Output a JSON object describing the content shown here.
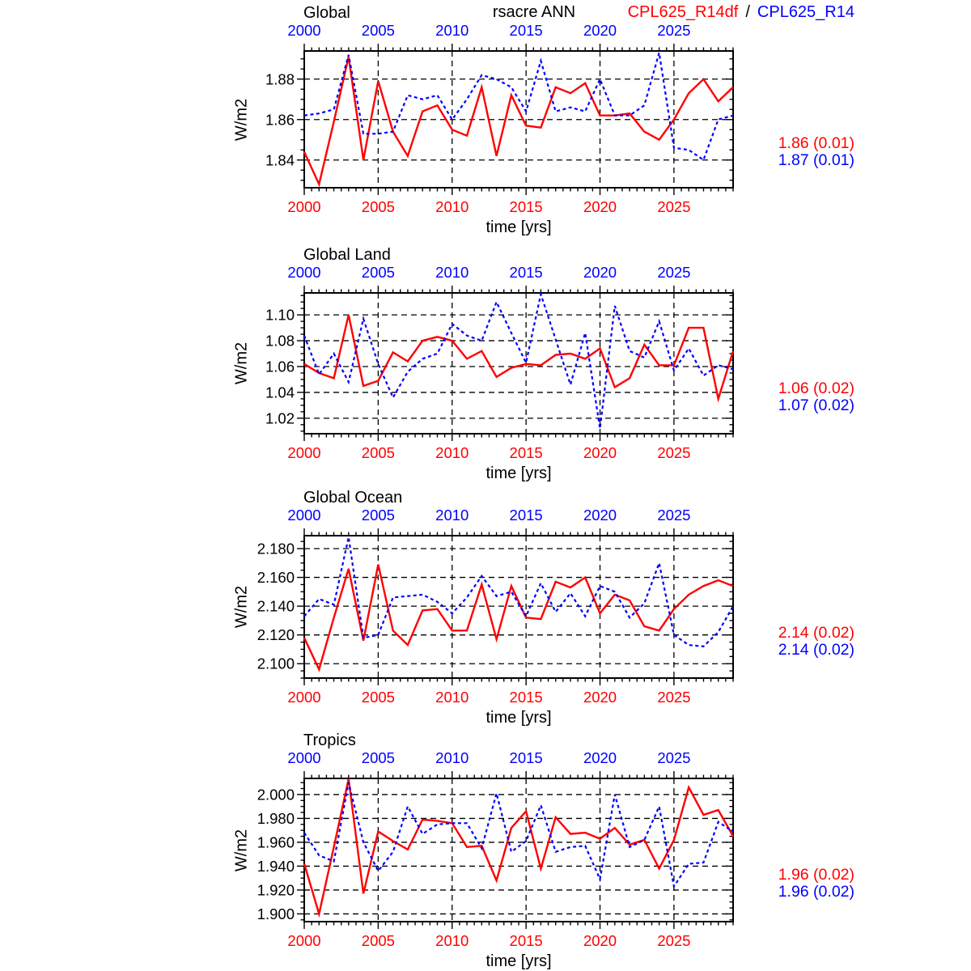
{
  "header": {
    "center_label": "rsacre ANN",
    "legend": {
      "series1": "CPL625_R14df",
      "separator": "/",
      "series2": "CPL625_R14"
    }
  },
  "labels": {
    "xlabel": "time [yrs]",
    "ylabel": "W/m2"
  },
  "colors": {
    "series1": "#ff0000",
    "series2": "#0000ff",
    "grid": "#000000",
    "frame": "#000000"
  },
  "x_years": [
    2000,
    2001,
    2002,
    2003,
    2004,
    2005,
    2006,
    2007,
    2008,
    2009,
    2010,
    2011,
    2012,
    2013,
    2014,
    2015,
    2016,
    2017,
    2018,
    2019,
    2020,
    2021,
    2022,
    2023,
    2024,
    2025,
    2026,
    2027,
    2028,
    2029
  ],
  "x_ticks": [
    2000,
    2005,
    2010,
    2015,
    2020,
    2025
  ],
  "chart_data": [
    {
      "type": "line",
      "title": "Global",
      "xlabel": "time [yrs]",
      "ylabel": "W/m2",
      "xlim": [
        2000,
        2029
      ],
      "ylim": [
        1.8263,
        1.8939
      ],
      "yticks": [
        1.84,
        1.86,
        1.88
      ],
      "ytick_labels": [
        "1.84",
        "1.86",
        "1.88"
      ],
      "stats": {
        "series1": "1.86 (0.01)",
        "series2": "1.87 (0.01)"
      },
      "series": [
        {
          "name": "CPL625_R14df",
          "style": "red-solid",
          "values": [
            1.844,
            1.828,
            1.859,
            1.891,
            1.84,
            1.879,
            1.854,
            1.842,
            1.864,
            1.867,
            1.855,
            1.852,
            1.876,
            1.842,
            1.872,
            1.857,
            1.856,
            1.876,
            1.873,
            1.878,
            1.862,
            1.862,
            1.863,
            1.854,
            1.85,
            1.86,
            1.873,
            1.88,
            1.869,
            1.876
          ]
        },
        {
          "name": "CPL625_R14",
          "style": "blue-dashed",
          "values": [
            1.862,
            1.863,
            1.865,
            1.892,
            1.853,
            1.853,
            1.854,
            1.872,
            1.87,
            1.872,
            1.86,
            1.87,
            1.882,
            1.88,
            1.876,
            1.864,
            1.889,
            1.864,
            1.866,
            1.864,
            1.88,
            1.862,
            1.862,
            1.867,
            1.893,
            1.846,
            1.845,
            1.84,
            1.86,
            1.862
          ]
        }
      ]
    },
    {
      "type": "line",
      "title": "Global Land",
      "xlabel": "time [yrs]",
      "ylabel": "W/m2",
      "xlim": [
        2000,
        2029
      ],
      "ylim": [
        1.008,
        1.117
      ],
      "yticks": [
        1.02,
        1.04,
        1.06,
        1.08,
        1.1
      ],
      "ytick_labels": [
        "1.02",
        "1.04",
        "1.06",
        "1.08",
        "1.10"
      ],
      "stats": {
        "series1": "1.06 (0.02)",
        "series2": "1.07 (0.02)"
      },
      "series": [
        {
          "name": "CPL625_R14df",
          "style": "red-solid",
          "values": [
            1.062,
            1.055,
            1.051,
            1.1,
            1.045,
            1.049,
            1.071,
            1.064,
            1.08,
            1.083,
            1.08,
            1.066,
            1.072,
            1.052,
            1.059,
            1.062,
            1.061,
            1.069,
            1.07,
            1.066,
            1.074,
            1.044,
            1.051,
            1.077,
            1.061,
            1.061,
            1.09,
            1.09,
            1.035,
            1.072
          ]
        },
        {
          "name": "CPL625_R14",
          "style": "blue-dashed",
          "values": [
            1.084,
            1.054,
            1.07,
            1.048,
            1.097,
            1.062,
            1.036,
            1.056,
            1.066,
            1.07,
            1.093,
            1.084,
            1.08,
            1.11,
            1.086,
            1.063,
            1.116,
            1.081,
            1.046,
            1.086,
            1.012,
            1.107,
            1.072,
            1.067,
            1.095,
            1.057,
            1.074,
            1.053,
            1.061,
            1.058
          ]
        }
      ]
    },
    {
      "type": "line",
      "title": "Global Ocean",
      "xlabel": "time [yrs]",
      "ylabel": "W/m2",
      "xlim": [
        2000,
        2029
      ],
      "ylim": [
        2.09,
        2.189
      ],
      "yticks": [
        2.1,
        2.12,
        2.14,
        2.16,
        2.18
      ],
      "ytick_labels": [
        "2.100",
        "2.120",
        "2.140",
        "2.160",
        "2.180"
      ],
      "stats": {
        "series1": "2.14 (0.02)",
        "series2": "2.14 (0.02)"
      },
      "series": [
        {
          "name": "CPL625_R14df",
          "style": "red-solid",
          "values": [
            2.118,
            2.096,
            2.132,
            2.166,
            2.116,
            2.169,
            2.123,
            2.113,
            2.137,
            2.138,
            2.123,
            2.123,
            2.155,
            2.117,
            2.154,
            2.132,
            2.131,
            2.157,
            2.153,
            2.16,
            2.135,
            2.148,
            2.144,
            2.126,
            2.123,
            2.138,
            2.148,
            2.154,
            2.158,
            2.154
          ]
        },
        {
          "name": "CPL625_R14",
          "style": "blue-dashed",
          "values": [
            2.133,
            2.145,
            2.141,
            2.188,
            2.118,
            2.12,
            2.146,
            2.147,
            2.148,
            2.143,
            2.135,
            2.146,
            2.161,
            2.147,
            2.15,
            2.133,
            2.156,
            2.136,
            2.149,
            2.133,
            2.154,
            2.15,
            2.132,
            2.142,
            2.17,
            2.12,
            2.113,
            2.112,
            2.122,
            2.14
          ]
        }
      ]
    },
    {
      "type": "line",
      "title": "Tropics",
      "xlabel": "time [yrs]",
      "ylabel": "W/m2",
      "xlim": [
        2000,
        2029
      ],
      "ylim": [
        1.8935,
        2.0135
      ],
      "yticks": [
        1.9,
        1.92,
        1.94,
        1.96,
        1.98,
        2.0
      ],
      "ytick_labels": [
        "1.900",
        "1.920",
        "1.940",
        "1.960",
        "1.980",
        "2.000"
      ],
      "stats": {
        "series1": "1.96 (0.02)",
        "series2": "1.96 (0.02)"
      },
      "series": [
        {
          "name": "CPL625_R14df",
          "style": "red-solid",
          "values": [
            1.942,
            1.9,
            1.956,
            2.013,
            1.917,
            1.969,
            1.961,
            1.954,
            1.979,
            1.978,
            1.976,
            1.956,
            1.957,
            1.928,
            1.972,
            1.986,
            1.938,
            1.981,
            1.967,
            1.968,
            1.963,
            1.972,
            1.958,
            1.962,
            1.938,
            1.962,
            2.006,
            1.983,
            1.987,
            1.965
          ]
        },
        {
          "name": "CPL625_R14",
          "style": "blue-dashed",
          "values": [
            1.968,
            1.949,
            1.944,
            2.01,
            1.96,
            1.936,
            1.952,
            1.99,
            1.967,
            1.975,
            1.976,
            1.976,
            1.955,
            2.001,
            1.952,
            1.961,
            1.991,
            1.952,
            1.956,
            1.957,
            1.929,
            2.0,
            1.956,
            1.962,
            1.99,
            1.923,
            1.942,
            1.943,
            1.977,
            1.969
          ]
        }
      ]
    }
  ]
}
